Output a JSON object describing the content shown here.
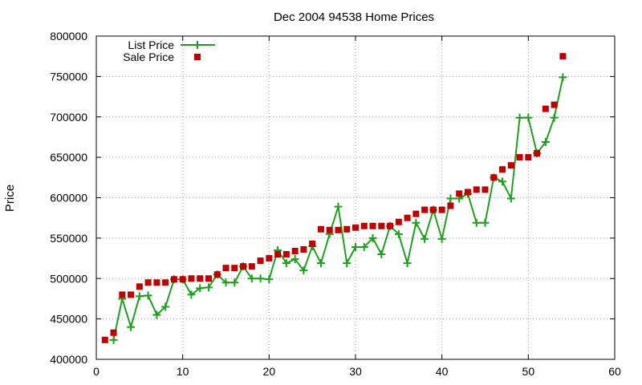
{
  "chart_data": {
    "type": "line",
    "title": "Dec 2004 94538 Home Prices",
    "xlabel": "",
    "ylabel": "Price",
    "xlim": [
      0,
      60
    ],
    "ylim": [
      400000,
      800000
    ],
    "x_ticks": [
      0,
      10,
      20,
      30,
      40,
      50,
      60
    ],
    "y_ticks": [
      400000,
      450000,
      500000,
      550000,
      600000,
      650000,
      700000,
      750000,
      800000
    ],
    "grid": true,
    "legend_position": "top-left",
    "colors": {
      "list": "#1ea01e",
      "sale": "#c00000"
    },
    "series": [
      {
        "name": "List Price",
        "style": "line-plus",
        "x": [
          2,
          3,
          4,
          5,
          6,
          7,
          8,
          9,
          10,
          11,
          12,
          13,
          14,
          15,
          16,
          17,
          18,
          19,
          20,
          21,
          22,
          23,
          24,
          25,
          26,
          27,
          28,
          29,
          30,
          31,
          32,
          33,
          34,
          35,
          36,
          37,
          38,
          39,
          40,
          41,
          42,
          43,
          44,
          45,
          46,
          47,
          48,
          49,
          50,
          51,
          52,
          53,
          54
        ],
        "values": [
          424000,
          475000,
          440000,
          478000,
          479000,
          455000,
          465000,
          499000,
          499000,
          480000,
          488000,
          489000,
          505000,
          495000,
          495000,
          515000,
          500000,
          500000,
          499000,
          535000,
          519000,
          524000,
          510000,
          540000,
          519000,
          555000,
          589000,
          519000,
          539000,
          539000,
          550000,
          530000,
          565000,
          555000,
          519000,
          569000,
          549000,
          585000,
          549000,
          599000,
          599000,
          605000,
          569000,
          569000,
          625000,
          620000,
          599000,
          699000,
          699000,
          655000,
          669000,
          699000,
          749000
        ]
      },
      {
        "name": "Sale Price",
        "style": "square-marker",
        "x": [
          1,
          2,
          3,
          4,
          5,
          6,
          7,
          8,
          9,
          10,
          11,
          12,
          13,
          14,
          15,
          16,
          17,
          18,
          19,
          20,
          21,
          22,
          23,
          24,
          25,
          26,
          27,
          28,
          29,
          30,
          31,
          32,
          33,
          34,
          35,
          36,
          37,
          38,
          39,
          40,
          41,
          42,
          43,
          44,
          45,
          46,
          47,
          48,
          49,
          50,
          51,
          52,
          53,
          54
        ],
        "values": [
          424000,
          433000,
          480000,
          480000,
          490000,
          495000,
          495000,
          495000,
          499000,
          499000,
          500000,
          500000,
          500000,
          505000,
          513000,
          513000,
          515000,
          515000,
          522000,
          525000,
          530000,
          530000,
          534000,
          536000,
          543000,
          561000,
          560000,
          560000,
          561000,
          563000,
          565000,
          565000,
          565000,
          565000,
          570000,
          575000,
          580000,
          585000,
          585000,
          585000,
          590000,
          605000,
          607000,
          610000,
          610000,
          625000,
          635000,
          640000,
          650000,
          650000,
          655000,
          710000,
          715000,
          775000
        ]
      }
    ]
  }
}
